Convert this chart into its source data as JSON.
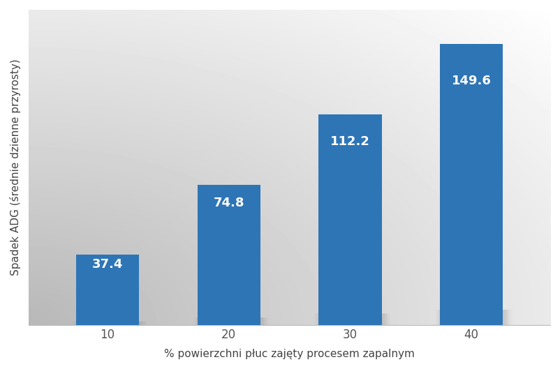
{
  "categories": [
    "10",
    "20",
    "30",
    "40"
  ],
  "values": [
    37.4,
    74.8,
    112.2,
    149.6
  ],
  "bar_color": "#2E75B6",
  "xlabel": "% powierzchni płuc zajęty procesem zapalnym",
  "ylabel": "Spadek ADG (średnie dzienne przyrosty)",
  "ylim": [
    0,
    168
  ],
  "label_color": "#FFFFFF",
  "label_fontsize": 13,
  "axis_fontsize": 11,
  "tick_fontsize": 12,
  "bar_width": 0.52
}
